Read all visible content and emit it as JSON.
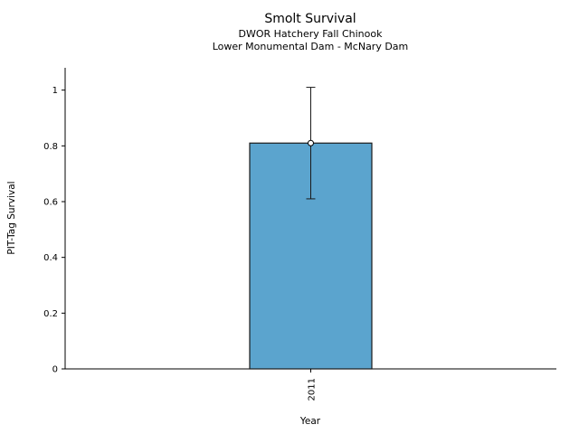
{
  "chart_data": {
    "type": "bar",
    "title": "Smolt Survival",
    "subtitle_lines": [
      "DWOR Hatchery Fall Chinook",
      "Lower Monumental Dam - McNary Dam"
    ],
    "xlabel": "Year",
    "ylabel": "PIT-Tag Survival",
    "categories": [
      "2011"
    ],
    "values": [
      0.81
    ],
    "error_low": [
      0.61
    ],
    "error_high": [
      1.01
    ],
    "ylim": [
      0,
      1.08
    ],
    "yticks": [
      0,
      0.2,
      0.4,
      0.6,
      0.8,
      1
    ],
    "ytick_labels": [
      "0",
      "0.2",
      "0.4",
      "0.6",
      "0.8",
      "1"
    ],
    "grid": false,
    "legend": "none",
    "bar_color": "#5BA4CE",
    "bar_edge_color": "#1a1a1a",
    "error_color": "#1a1a1a",
    "background": "#ffffff"
  }
}
